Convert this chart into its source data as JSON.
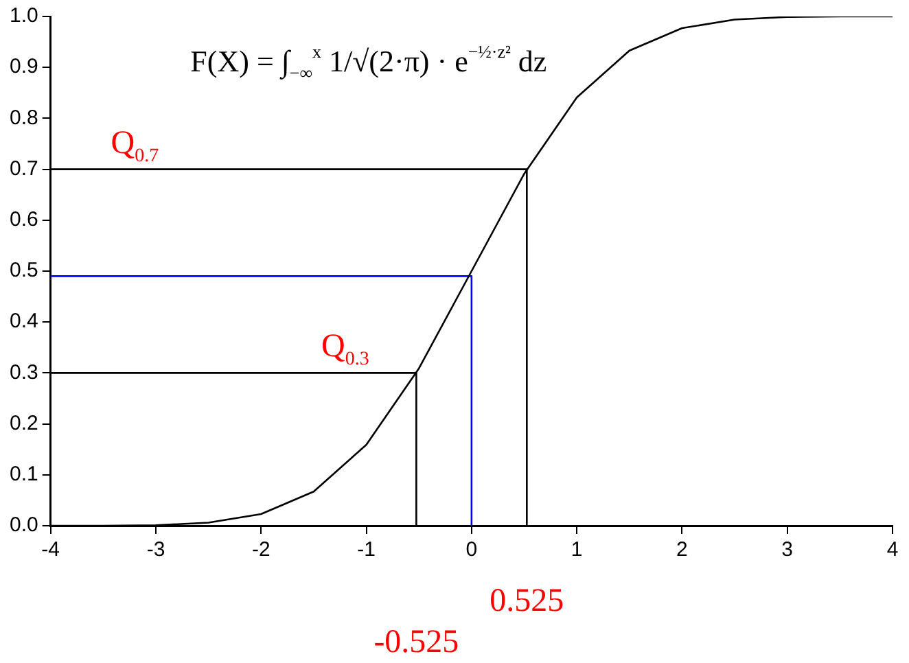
{
  "chart_data": {
    "type": "line",
    "xlim": [
      -4,
      4
    ],
    "ylim": [
      0,
      1
    ],
    "xticks": [
      -4,
      -3,
      -2,
      -1,
      0,
      1,
      2,
      3,
      4
    ],
    "yticks": [
      {
        "value": 0,
        "label": "0.0"
      },
      {
        "value": 0.1,
        "label": "0.1"
      },
      {
        "value": 0.2,
        "label": "0.2"
      },
      {
        "value": 0.3,
        "label": "0.3"
      },
      {
        "value": 0.4,
        "label": "0.4"
      },
      {
        "value": 0.5,
        "label": "0.5"
      },
      {
        "value": 0.6,
        "label": "0.6"
      },
      {
        "value": 0.7,
        "label": "0.7"
      },
      {
        "value": 0.8,
        "label": "0.8"
      },
      {
        "value": 0.9,
        "label": "0.9"
      },
      {
        "value": 1,
        "label": "1.0"
      }
    ],
    "grid": false,
    "legend": false,
    "marker": "none",
    "line_style": "solid",
    "series": [
      {
        "color": "#000000",
        "x": [
          -4,
          -3.5,
          -3,
          -2.5,
          -2,
          -1.5,
          -1,
          -0.5,
          0,
          0.5,
          1,
          1.5,
          2,
          2.5,
          3,
          3.5,
          4
        ],
        "values": [
          0,
          0,
          0.001,
          0.006,
          0.023,
          0.067,
          0.159,
          0.309,
          0.5,
          0.691,
          0.841,
          0.933,
          0.977,
          0.994,
          0.999,
          1,
          1
        ]
      },
      {
        "color": "#000000",
        "x": [
          -4,
          0.525,
          0.525
        ],
        "values": [
          0.7,
          0.7,
          0
        ]
      },
      {
        "color": "#0000ff",
        "x": [
          -4,
          0,
          0
        ],
        "values": [
          0.49,
          0.49,
          0
        ]
      },
      {
        "color": "#000000",
        "x": [
          -4,
          -0.525,
          -0.525
        ],
        "values": [
          0.3,
          0.3,
          0
        ]
      }
    ],
    "annotations": [
      "F(X) = ∫$_{−∞}$$^{x}$ 1/√(2·π) · e$^{−½·z²}$ dz",
      {
        "text": "Q$_{0.7}$",
        "x": -3.2,
        "y": 0.7
      },
      {
        "text": "Q$_{0.3}$",
        "x": -1.2,
        "y": 0.3
      },
      {
        "text": "0.525",
        "x": 0.525,
        "y": 0
      },
      {
        "text": "-0.525",
        "x": -0.525,
        "y": 0
      }
    ]
  }
}
